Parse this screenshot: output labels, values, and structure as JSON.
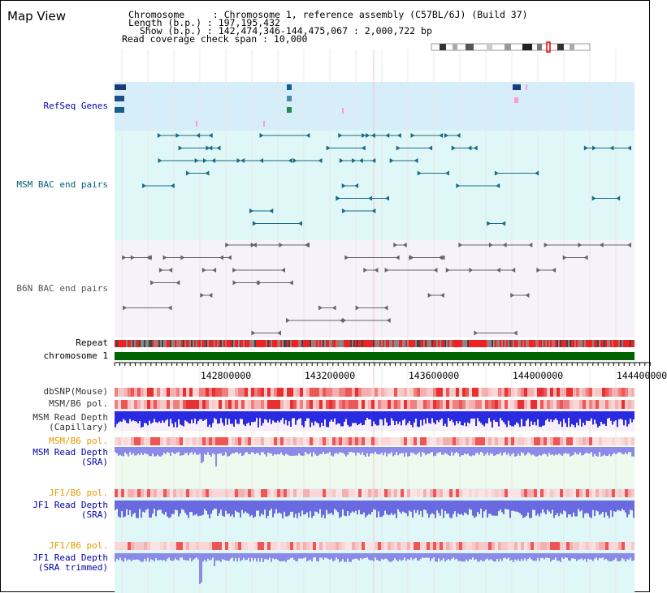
{
  "title": "Map View",
  "info": {
    "chromosome_label": "Chromosome     : Chromosome 1, reference assembly (C57BL/6J) (Build 37)",
    "length_label": "Length (b.p.) : 197,195,432",
    "show_label": "  Show (b.p.) : 142,474,346-144,475,067 : 2,000,722 bp",
    "coverage_label": "Read coverage check span : 10,000"
  },
  "tracks": {
    "refseq": "RefSeq Genes",
    "msm_bac": "MSM BAC end pairs",
    "b6n_bac": "B6N BAC end pairs",
    "repeat": "Repeat",
    "chromosome": "chromosome 1",
    "dbsnp": "dbSNP(Mouse)",
    "msm_b6_pol": "MSM/B6 pol.",
    "msm_depth_cap": "MSM Read Depth\n(Capillary)",
    "msm_b6_pol2": "MSM/B6 pol.",
    "msm_depth_sra": "MSM Read Depth\n(SRA)",
    "jf1_b6_pol": "JF1/B6 pol.",
    "jf1_depth_sra": "JF1 Read Depth\n(SRA)",
    "jf1_b6_pol2": "JF1/B6 pol.",
    "jf1_depth_trim": "JF1 Read Depth\n(SRA trimmed)"
  },
  "axis": {
    "ticks": [
      "142800000",
      "143200000",
      "143600000",
      "144000000",
      "144400000"
    ]
  },
  "colors": {
    "refseq_bg": "#d6eefa",
    "msm_bg": "#dff7f7",
    "b6n_bg": "#f6f2fa",
    "chromosome": "#006400",
    "depth_blue": "#3333ee",
    "depth_light": "#8888ee",
    "pol_red": "#ee3333",
    "label_orange": "#e69a00",
    "label_blue": "#0000aa"
  }
}
